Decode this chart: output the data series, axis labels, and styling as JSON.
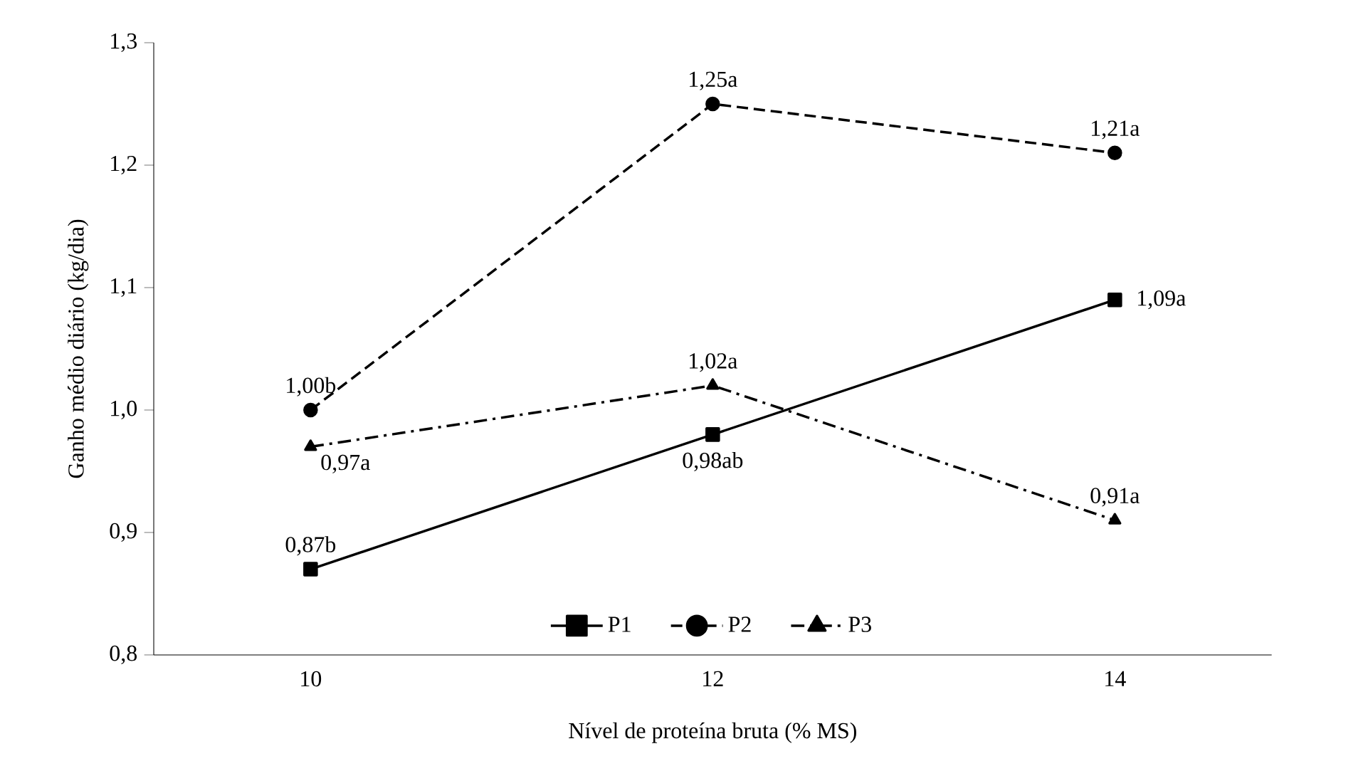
{
  "chart_data": {
    "type": "line",
    "xlabel": "Nível de proteína bruta (% MS)",
    "ylabel": "Ganho médio diário (kg/dia)",
    "categories": [
      "10",
      "12",
      "14"
    ],
    "series": [
      {
        "name": "P1",
        "color": "#000000",
        "marker": "square",
        "line_style": "solid",
        "values": [
          0.87,
          0.98,
          1.09
        ],
        "value_labels": [
          "0,87b",
          "0,98ab",
          "1,09a"
        ]
      },
      {
        "name": "P2",
        "color": "#000000",
        "marker": "circle",
        "line_style": "dashed",
        "values": [
          1.0,
          1.25,
          1.21
        ],
        "value_labels": [
          "1,00b",
          "1,25a",
          "1,21a"
        ]
      },
      {
        "name": "P3",
        "color": "#000000",
        "marker": "triangle",
        "line_style": "dashdot",
        "values": [
          0.97,
          1.02,
          0.91
        ],
        "value_labels": [
          "0,97a",
          "1,02a",
          "0,91a"
        ]
      }
    ],
    "ylim": [
      0.8,
      1.3
    ],
    "yticks": [
      {
        "value": 0.8,
        "label": "0,8"
      },
      {
        "value": 0.9,
        "label": "0,9"
      },
      {
        "value": 1.0,
        "label": "1,0"
      },
      {
        "value": 1.1,
        "label": "1,1"
      },
      {
        "value": 1.2,
        "label": "1,2"
      },
      {
        "value": 1.3,
        "label": "1,3"
      }
    ],
    "grid": false,
    "legend": "bottom"
  }
}
